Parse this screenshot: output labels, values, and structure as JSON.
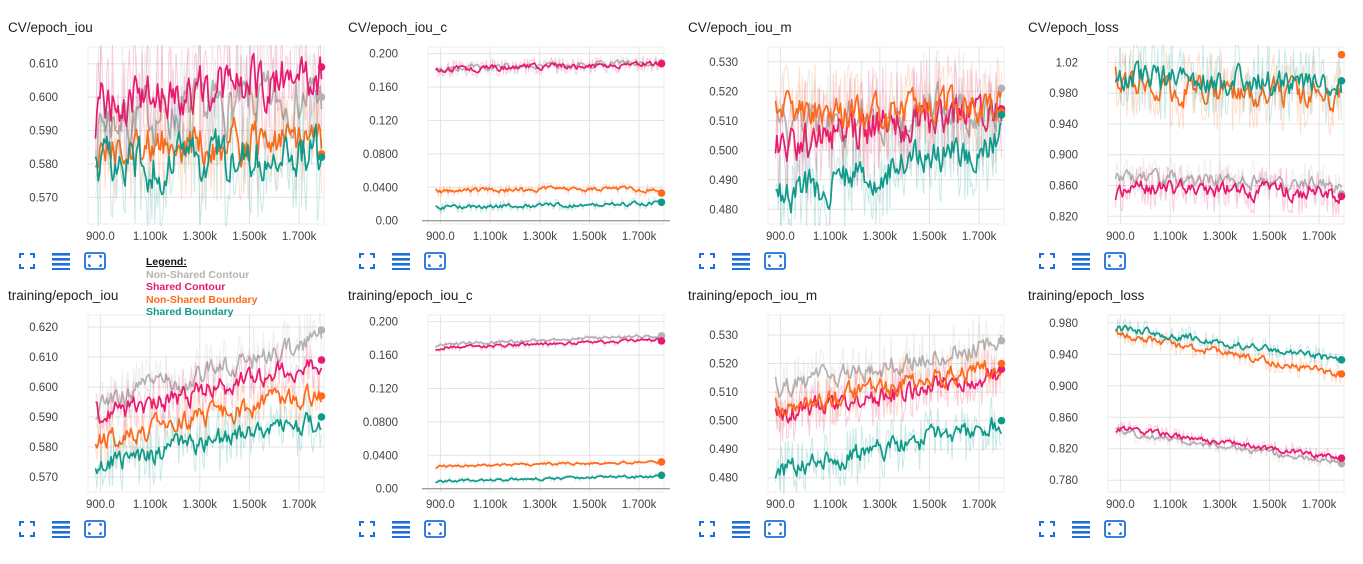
{
  "legend": {
    "title": "Legend:",
    "entries": [
      {
        "label": "Non-Shared Contour",
        "color": "#b3b3b3"
      },
      {
        "label": "Shared Contour",
        "color": "#e8196f"
      },
      {
        "label": "Non-Shared Boundary",
        "color": "#ff6a1a"
      },
      {
        "label": "Shared Boundary",
        "color": "#0f9a8a"
      }
    ]
  },
  "toolbar_icons": [
    "fullscreen-icon",
    "data-list-icon",
    "fit-domain-icon"
  ],
  "chart_data": [
    {
      "title": "CV/epoch_iou",
      "type": "line",
      "x_range": [
        850,
        1800
      ],
      "x_ticks": [
        "900.0",
        "1.100k",
        "1.300k",
        "1.500k",
        "1.700k"
      ],
      "x_tick_values": [
        900,
        1100,
        1300,
        1500,
        1700
      ],
      "ylim": [
        0.562,
        0.615
      ],
      "y_ticks": [
        "0.570",
        "0.580",
        "0.590",
        "0.600",
        "0.610"
      ],
      "y_tick_values": [
        0.57,
        0.58,
        0.59,
        0.6,
        0.61
      ],
      "zero_line": false,
      "series": [
        {
          "name": "Non-Shared Contour",
          "start": 0.593,
          "end": 0.6,
          "noise": 0.0065,
          "final": 0.6
        },
        {
          "name": "Shared Contour",
          "start": 0.597,
          "end": 0.607,
          "noise": 0.006,
          "final": 0.609
        },
        {
          "name": "Non-Shared Boundary",
          "start": 0.585,
          "end": 0.587,
          "noise": 0.005,
          "final": 0.583
        },
        {
          "name": "Shared Boundary",
          "start": 0.579,
          "end": 0.584,
          "noise": 0.006,
          "final": 0.582
        }
      ]
    },
    {
      "title": "CV/epoch_iou_c",
      "type": "line",
      "x_range": [
        850,
        1800
      ],
      "x_ticks": [
        "900.0",
        "1.100k",
        "1.300k",
        "1.500k",
        "1.700k"
      ],
      "x_tick_values": [
        900,
        1100,
        1300,
        1500,
        1700
      ],
      "ylim": [
        -0.004,
        0.208
      ],
      "y_ticks": [
        "0.00",
        "0.0400",
        "0.0800",
        "0.120",
        "0.160",
        "0.200"
      ],
      "y_tick_values": [
        0.0,
        0.04,
        0.08,
        0.12,
        0.16,
        0.2
      ],
      "zero_line": true,
      "series": [
        {
          "name": "Non-Shared Contour",
          "start": 0.183,
          "end": 0.189,
          "noise": 0.003,
          "final": 0.189
        },
        {
          "name": "Shared Contour",
          "start": 0.181,
          "end": 0.188,
          "noise": 0.003,
          "final": 0.188
        },
        {
          "name": "Non-Shared Boundary",
          "start": 0.036,
          "end": 0.038,
          "noise": 0.0025,
          "final": 0.033
        },
        {
          "name": "Shared Boundary",
          "start": 0.016,
          "end": 0.021,
          "noise": 0.002,
          "final": 0.022
        }
      ]
    },
    {
      "title": "CV/epoch_iou_m",
      "type": "line",
      "x_range": [
        850,
        1800
      ],
      "x_ticks": [
        "900.0",
        "1.100k",
        "1.300k",
        "1.500k",
        "1.700k"
      ],
      "x_tick_values": [
        900,
        1100,
        1300,
        1500,
        1700
      ],
      "ylim": [
        0.475,
        0.535
      ],
      "y_ticks": [
        "0.480",
        "0.490",
        "0.500",
        "0.510",
        "0.520",
        "0.530"
      ],
      "y_tick_values": [
        0.48,
        0.49,
        0.5,
        0.51,
        0.52,
        0.53
      ],
      "zero_line": false,
      "series": [
        {
          "name": "Non-Shared Contour",
          "start": 0.506,
          "end": 0.516,
          "noise": 0.006,
          "final": 0.521
        },
        {
          "name": "Shared Contour",
          "start": 0.502,
          "end": 0.514,
          "noise": 0.006,
          "final": 0.514
        },
        {
          "name": "Non-Shared Boundary",
          "start": 0.511,
          "end": 0.517,
          "noise": 0.005,
          "final": 0.513
        },
        {
          "name": "Shared Boundary",
          "start": 0.484,
          "end": 0.503,
          "noise": 0.005,
          "final": 0.512
        }
      ]
    },
    {
      "title": "CV/epoch_loss",
      "type": "line",
      "x_range": [
        850,
        1800
      ],
      "x_ticks": [
        "900.0",
        "1.100k",
        "1.300k",
        "1.500k",
        "1.700k"
      ],
      "x_tick_values": [
        900,
        1100,
        1300,
        1500,
        1700
      ],
      "ylim": [
        0.81,
        1.04
      ],
      "y_ticks": [
        "0.820",
        "0.860",
        "0.900",
        "0.940",
        "0.980",
        "1.02"
      ],
      "y_tick_values": [
        0.82,
        0.86,
        0.9,
        0.94,
        0.98,
        1.02
      ],
      "zero_line": false,
      "series": [
        {
          "name": "Non-Shared Contour",
          "start": 0.872,
          "end": 0.86,
          "noise": 0.008,
          "final": 0.849
        },
        {
          "name": "Shared Contour",
          "start": 0.858,
          "end": 0.85,
          "noise": 0.009,
          "final": 0.846
        },
        {
          "name": "Non-Shared Boundary",
          "start": 0.99,
          "end": 0.975,
          "noise": 0.015,
          "final": 1.03
        },
        {
          "name": "Shared Boundary",
          "start": 1.0,
          "end": 0.99,
          "noise": 0.015,
          "final": 0.996
        }
      ]
    },
    {
      "title": "training/epoch_iou",
      "type": "line",
      "x_range": [
        850,
        1800
      ],
      "x_ticks": [
        "900.0",
        "1.100k",
        "1.300k",
        "1.500k",
        "1.700k"
      ],
      "x_tick_values": [
        900,
        1100,
        1300,
        1500,
        1700
      ],
      "ylim": [
        0.565,
        0.624
      ],
      "y_ticks": [
        "0.570",
        "0.580",
        "0.590",
        "0.600",
        "0.610",
        "0.620"
      ],
      "y_tick_values": [
        0.57,
        0.58,
        0.59,
        0.6,
        0.61,
        0.62
      ],
      "zero_line": false,
      "series": [
        {
          "name": "Non-Shared Contour",
          "start": 0.594,
          "end": 0.616,
          "noise": 0.003,
          "final": 0.619
        },
        {
          "name": "Shared Contour",
          "start": 0.59,
          "end": 0.608,
          "noise": 0.003,
          "final": 0.609
        },
        {
          "name": "Non-Shared Boundary",
          "start": 0.582,
          "end": 0.598,
          "noise": 0.003,
          "final": 0.597
        },
        {
          "name": "Shared Boundary",
          "start": 0.574,
          "end": 0.589,
          "noise": 0.003,
          "final": 0.59
        }
      ]
    },
    {
      "title": "training/epoch_iou_c",
      "type": "line",
      "x_range": [
        850,
        1800
      ],
      "x_ticks": [
        "900.0",
        "1.100k",
        "1.300k",
        "1.500k",
        "1.700k"
      ],
      "x_tick_values": [
        900,
        1100,
        1300,
        1500,
        1700
      ],
      "ylim": [
        -0.004,
        0.208
      ],
      "y_ticks": [
        "0.00",
        "0.0400",
        "0.0800",
        "0.120",
        "0.160",
        "0.200"
      ],
      "y_tick_values": [
        0.0,
        0.04,
        0.08,
        0.12,
        0.16,
        0.2
      ],
      "zero_line": true,
      "series": [
        {
          "name": "Non-Shared Contour",
          "start": 0.172,
          "end": 0.184,
          "noise": 0.0015,
          "final": 0.183
        },
        {
          "name": "Shared Contour",
          "start": 0.169,
          "end": 0.178,
          "noise": 0.0015,
          "final": 0.177
        },
        {
          "name": "Non-Shared Boundary",
          "start": 0.027,
          "end": 0.032,
          "noise": 0.0012,
          "final": 0.032
        },
        {
          "name": "Shared Boundary",
          "start": 0.009,
          "end": 0.015,
          "noise": 0.0012,
          "final": 0.016
        }
      ]
    },
    {
      "title": "training/epoch_iou_m",
      "type": "line",
      "x_range": [
        850,
        1800
      ],
      "x_ticks": [
        "900.0",
        "1.100k",
        "1.300k",
        "1.500k",
        "1.700k"
      ],
      "x_tick_values": [
        900,
        1100,
        1300,
        1500,
        1700
      ],
      "ylim": [
        0.475,
        0.537
      ],
      "y_ticks": [
        "0.480",
        "0.490",
        "0.500",
        "0.510",
        "0.520",
        "0.530"
      ],
      "y_tick_values": [
        0.48,
        0.49,
        0.5,
        0.51,
        0.52,
        0.53
      ],
      "zero_line": false,
      "series": [
        {
          "name": "Non-Shared Contour",
          "start": 0.511,
          "end": 0.528,
          "noise": 0.003,
          "final": 0.528
        },
        {
          "name": "Shared Contour",
          "start": 0.502,
          "end": 0.516,
          "noise": 0.003,
          "final": 0.518
        },
        {
          "name": "Non-Shared Boundary",
          "start": 0.504,
          "end": 0.519,
          "noise": 0.003,
          "final": 0.52
        },
        {
          "name": "Shared Boundary",
          "start": 0.482,
          "end": 0.499,
          "noise": 0.003,
          "final": 0.5
        }
      ]
    },
    {
      "title": "training/epoch_loss",
      "type": "line",
      "x_range": [
        850,
        1800
      ],
      "x_ticks": [
        "900.0",
        "1.100k",
        "1.300k",
        "1.500k",
        "1.700k"
      ],
      "x_tick_values": [
        900,
        1100,
        1300,
        1500,
        1700
      ],
      "ylim": [
        0.765,
        0.99
      ],
      "y_ticks": [
        "0.780",
        "0.820",
        "0.860",
        "0.900",
        "0.940",
        "0.980"
      ],
      "y_tick_values": [
        0.78,
        0.82,
        0.86,
        0.9,
        0.94,
        0.98
      ],
      "zero_line": false,
      "series": [
        {
          "name": "Non-Shared Contour",
          "start": 0.842,
          "end": 0.802,
          "noise": 0.003,
          "final": 0.801
        },
        {
          "name": "Shared Contour",
          "start": 0.847,
          "end": 0.808,
          "noise": 0.003,
          "final": 0.808
        },
        {
          "name": "Non-Shared Boundary",
          "start": 0.966,
          "end": 0.915,
          "noise": 0.004,
          "final": 0.915
        },
        {
          "name": "Shared Boundary",
          "start": 0.974,
          "end": 0.933,
          "noise": 0.004,
          "final": 0.933
        }
      ]
    }
  ]
}
